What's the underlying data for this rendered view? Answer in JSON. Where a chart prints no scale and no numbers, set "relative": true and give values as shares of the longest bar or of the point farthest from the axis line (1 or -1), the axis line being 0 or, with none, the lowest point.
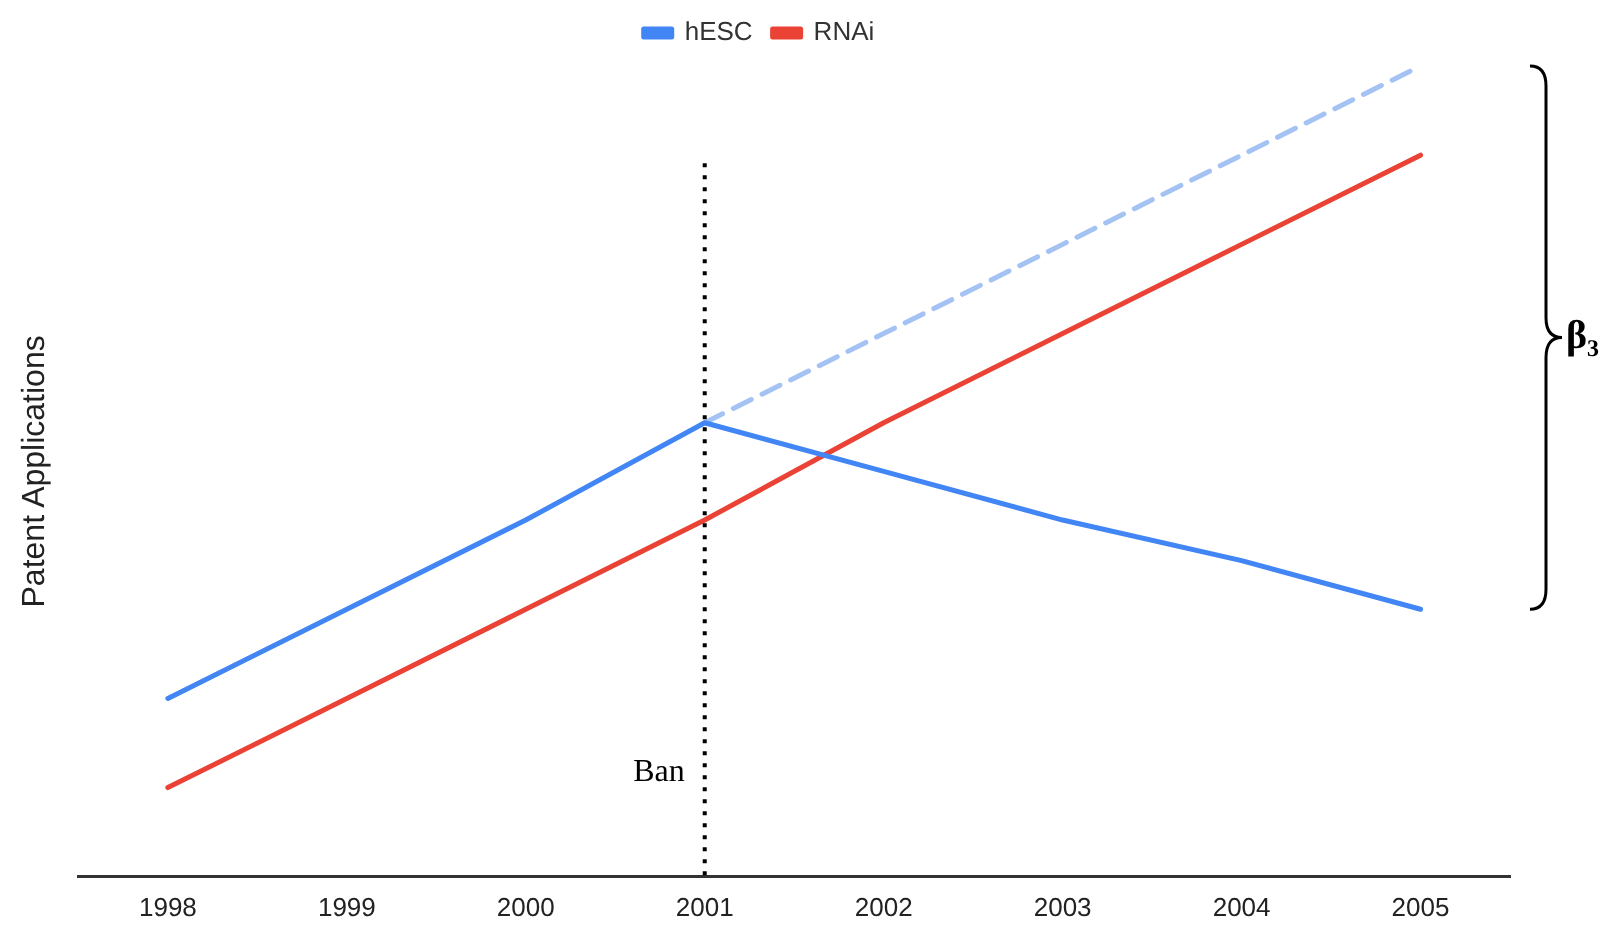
{
  "chart_data": {
    "type": "line",
    "relative": true,
    "ylabel": "Patent Applications",
    "categories": [
      "1998",
      "1999",
      "2000",
      "2001",
      "2002",
      "2003",
      "2004",
      "2005"
    ],
    "series": [
      {
        "name": "hESC",
        "color": "#4285f4",
        "values": [
          0.22,
          0.33,
          0.44,
          0.56,
          0.5,
          0.44,
          0.39,
          0.33
        ]
      },
      {
        "name": "RNAi",
        "color": "#ea4335",
        "values": [
          0.11,
          0.22,
          0.33,
          0.44,
          0.56,
          0.67,
          0.78,
          0.89
        ]
      },
      {
        "color": "#a4c2f4",
        "line_style": "dashed",
        "values": [
          null,
          null,
          null,
          0.56,
          0.67,
          0.78,
          0.89,
          1
        ]
      }
    ],
    "ref_lines": [
      {
        "axis": "x",
        "value": "2001",
        "label": "Ban",
        "color": "#000000",
        "line_style": "dotted"
      }
    ],
    "annotations": [
      "β₃"
    ],
    "legend": "top",
    "marker": "none",
    "line_style": "solid"
  }
}
